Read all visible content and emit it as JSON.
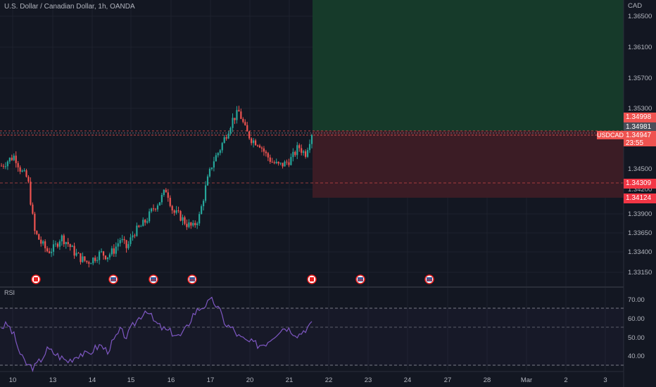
{
  "header": {
    "title": "U.S. Dollar / Canadian Dollar, 1h, OANDA",
    "currency": "CAD"
  },
  "price_axis": {
    "ticks": [
      "1.36500",
      "1.36100",
      "1.35700",
      "1.35300",
      "1.34500",
      "1.34200",
      "1.33900",
      "1.33650",
      "1.33400",
      "1.33150"
    ]
  },
  "price_labels": {
    "target": "1.34998",
    "current": "1.34981",
    "symbol": "USDCAD",
    "bid": "1.34947",
    "countdown": "23:55",
    "mid_stop": "1.34309",
    "stop": "1.34124"
  },
  "rsi": {
    "label": "RSI",
    "ticks": [
      "70.00",
      "60.00",
      "50.00",
      "40.00"
    ]
  },
  "time_axis": {
    "labels": [
      "10",
      "13",
      "14",
      "15",
      "16",
      "17",
      "20",
      "21",
      "22",
      "23",
      "24",
      "27",
      "28",
      "Mar",
      "2",
      "3"
    ]
  },
  "event_markers": [
    "CA",
    "US",
    "US",
    "US",
    "CA",
    "US",
    "US"
  ],
  "colors": {
    "background": "#131722",
    "up": "#26a69a",
    "down": "#ef5350",
    "rsi_line": "#7e57c2",
    "target_zone": "#163a2a",
    "stop_zone": "#3b1c25"
  },
  "chart_data": {
    "type": "candlestick",
    "symbol": "USDCAD",
    "timeframe": "1h",
    "close_path": [
      1.3455,
      1.3462,
      1.3468,
      1.3448,
      1.3438,
      1.337,
      1.3355,
      1.3344,
      1.3348,
      1.3363,
      1.3355,
      1.3343,
      1.3335,
      1.333,
      1.3335,
      1.3342,
      1.3338,
      1.3345,
      1.336,
      1.3348,
      1.3368,
      1.3375,
      1.3385,
      1.34,
      1.341,
      1.3425,
      1.3395,
      1.339,
      1.338,
      1.3375,
      1.339,
      1.343,
      1.346,
      1.3475,
      1.3495,
      1.3515,
      1.3525,
      1.35,
      1.3488,
      1.3485,
      1.347,
      1.346,
      1.3455,
      1.3458,
      1.3465,
      1.348,
      1.347,
      1.3498
    ],
    "rsi_values": [
      57,
      58,
      52,
      42,
      38,
      37,
      41,
      46,
      44,
      42,
      40,
      42,
      44,
      43,
      46,
      48,
      45,
      50,
      55,
      52,
      58,
      62,
      66,
      60,
      57,
      55,
      54,
      52,
      56,
      63,
      66,
      68,
      70,
      65,
      58,
      56,
      52,
      50,
      49,
      48,
      49,
      52,
      55,
      57,
      55,
      53,
      56,
      58
    ],
    "price_range": [
      1.3305,
      1.367
    ],
    "rsi_range": [
      35,
      73
    ],
    "levels": {
      "target": 1.34998,
      "current": 1.34981,
      "bid": 1.34947,
      "stop_mid": 1.34309,
      "stop": 1.34124
    }
  }
}
